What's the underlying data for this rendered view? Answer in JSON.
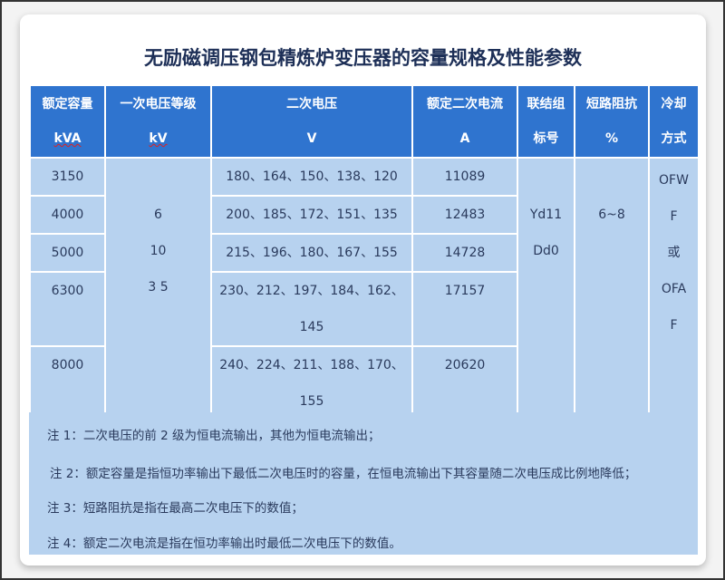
{
  "title": "无励磁调压钢包精炼炉变压器的容量规格及性能参数",
  "headers": [
    {
      "l1": "额定容量",
      "l2": "kVA"
    },
    {
      "l1": "一次电压等级",
      "l2": "kV"
    },
    {
      "l1": "二次电压",
      "l2": "V"
    },
    {
      "l1": "额定二次电流",
      "l2": "A"
    },
    {
      "l1": "联结组",
      "l2": "标号"
    },
    {
      "l1": "短路阻抗",
      "l2": "%"
    },
    {
      "l1": "冷却",
      "l2": "方式"
    }
  ],
  "rows": [
    {
      "capacity": "3150",
      "voltage2": [
        "180、164、150、138、120"
      ],
      "current": "11089"
    },
    {
      "capacity": "4000",
      "voltage2": [
        "200、185、172、151、135"
      ],
      "current": "12483"
    },
    {
      "capacity": "5000",
      "voltage2": [
        "215、196、180、167、155"
      ],
      "current": "14728"
    },
    {
      "capacity": "6300",
      "voltage2": [
        "230、212、197、184、162、",
        "145"
      ],
      "current": "17157"
    },
    {
      "capacity": "8000",
      "voltage2": [
        "240、224、211、188、170、",
        "155"
      ],
      "current": "20620"
    }
  ],
  "primary_voltage": [
    "6",
    "10",
    "3 5"
  ],
  "connection": [
    "Yd11",
    "Dd0"
  ],
  "impedance": "6~8",
  "cooling": [
    "OFW",
    "F",
    "或",
    "OFA",
    "F"
  ],
  "notes": [
    "注 1：二次电压的前 2 级为恒电流输出，其他为恒电流输出；",
    "注 2：额定容量是指恒功率输出下最低二次电压时的容量，在恒电流输出下其容量随二次电压成比例地降低；",
    "注 3：短路阻抗是指在最高二次电压下的数值；",
    "注 4：额定二次电流是指在恒功率输出时最低二次电压下的数值。"
  ]
}
